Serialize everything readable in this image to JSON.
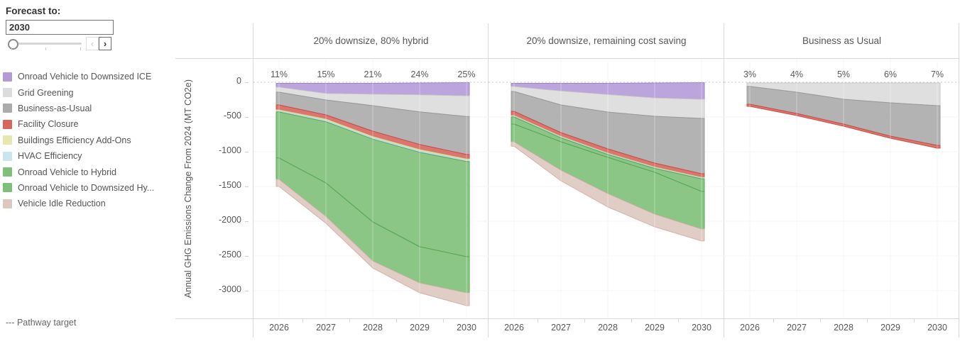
{
  "forecast_filter": {
    "label": "Forecast to:",
    "value": "2030",
    "prev": "‹",
    "next": "›"
  },
  "legend": {
    "items": [
      {
        "label": "Onroad Vehicle to Downsized ICE",
        "color": "#b49bd8"
      },
      {
        "label": "Grid Greening",
        "color": "#dcdcdc"
      },
      {
        "label": "Business-as-Usual",
        "color": "#ababab"
      },
      {
        "label": "Facility Closure",
        "color": "#d7665f"
      },
      {
        "label": "Buildings Efficiency Add-Ons",
        "color": "#e5e7ae"
      },
      {
        "label": "HVAC Efficiency",
        "color": "#cbe5ef"
      },
      {
        "label": "Onroad Vehicle to Hybrid",
        "color": "#7ec07a"
      },
      {
        "label": "Onroad Vehicle to Downsized Hy...",
        "color": "#7ec07a"
      },
      {
        "label": "Vehicle Idle Reduction",
        "color": "#ddc8c0"
      }
    ]
  },
  "pathway_target_note": "--- Pathway target",
  "y_axis": {
    "title": "Annual GHG Emissions Change From 2024 (MT CO2e)",
    "ticks": [
      0,
      -500,
      -1000,
      -1500,
      -2000,
      -2500,
      -3000
    ]
  },
  "x_axis": {
    "years": [
      "2026",
      "2027",
      "2028",
      "2029",
      "2030"
    ]
  },
  "chart_data": {
    "type": "area",
    "stacking": "stacked downward from zero; values are annual GHG emissions change from 2024 in MT CO2e",
    "x": [
      "2026",
      "2027",
      "2028",
      "2029",
      "2030"
    ],
    "ylabel": "Annual GHG Emissions Change From 2024 (MT CO2e)",
    "ylim": [
      -3400,
      0
    ],
    "grid": true,
    "zero_reference_line": "dotted (pathway target)",
    "panels": [
      {
        "title": "20% downsize, 80% hybrid",
        "percent_labels": [
          "11%",
          "15%",
          "21%",
          "24%",
          "25%"
        ],
        "top_offset": [
          -15,
          -15,
          -15,
          -10,
          -5
        ],
        "series": [
          {
            "name": "Onroad Vehicle to Downsized ICE",
            "fill": "#b49bd8",
            "border": "#9d7fc9",
            "values": [
              -55,
              -145,
              -155,
              -170,
              -190
            ]
          },
          {
            "name": "Grid Greening",
            "fill": "#dcdcdc",
            "border": "#c6c6c6",
            "values": [
              -73,
              -95,
              -167,
              -245,
              -298
            ]
          },
          {
            "name": "Business-as-Usual",
            "fill": "#ababab",
            "border": "#979797",
            "values": [
              -184,
              -214,
              -367,
              -470,
              -547
            ]
          },
          {
            "name": "Facility Closure",
            "fill": "#d7665f",
            "border": "#c74b42",
            "values": [
              -71,
              -62,
              -78,
              -74,
              -65
            ]
          },
          {
            "name": "Buildings Efficiency Add-Ons",
            "fill": "#e5e7ae",
            "border": "#d5d88c",
            "values": [
              -15,
              -18,
              -18,
              -19,
              -17
            ]
          },
          {
            "name": "HVAC Efficiency",
            "fill": "#cbe5ef",
            "border": "#aed5e6",
            "values": [
              -15,
              -18,
              -18,
              -19,
              -18
            ]
          },
          {
            "name": "Onroad Vehicle to Hybrid",
            "fill": "#7ec07a",
            "border": "#53a553",
            "values": [
              -662,
              -882,
              -1192,
              -1360,
              -1370
            ]
          },
          {
            "name": "Onroad Vehicle to Downsized Hybrid",
            "fill": "#7ec07a",
            "border": "#53a553",
            "values": [
              -307,
              -481,
              -561,
              -521,
              -520
            ]
          },
          {
            "name": "Vehicle Idle Reduction",
            "fill": "#ddc8c0",
            "border": "#cfb1a6",
            "values": [
              -103,
              -100,
              -102,
              -142,
              -185
            ]
          }
        ]
      },
      {
        "title": "20% downsize, remaining cost saving",
        "percent_labels": [],
        "top_offset": [
          -15,
          -15,
          -15,
          -10,
          -5
        ],
        "series": [
          {
            "name": "Onroad Vehicle to Downsized ICE",
            "fill": "#b49bd8",
            "border": "#9d7fc9",
            "values": [
              -46,
              -111,
              -162,
              -215,
              -240
            ]
          },
          {
            "name": "Grid Greening",
            "fill": "#dcdcdc",
            "border": "#c6c6c6",
            "values": [
              -72,
              -201,
              -252,
              -265,
              -275
            ]
          },
          {
            "name": "Business-as-Usual",
            "fill": "#ababab",
            "border": "#979797",
            "values": [
              -285,
              -397,
              -530,
              -673,
              -796
            ]
          },
          {
            "name": "Facility Closure",
            "fill": "#d7665f",
            "border": "#c74b42",
            "values": [
              -62,
              -56,
              -61,
              -57,
              -54
            ]
          },
          {
            "name": "Buildings Efficiency Add-Ons",
            "fill": "#e5e7ae",
            "border": "#d5d88c",
            "values": [
              -10,
              -10,
              -10,
              -10,
              -10
            ]
          },
          {
            "name": "HVAC Efficiency",
            "fill": "#cbe5ef",
            "border": "#aed5e6",
            "values": [
              -10,
              -10,
              -10,
              -10,
              -10
            ]
          },
          {
            "name": "Onroad Vehicle to Hybrid",
            "fill": "#7ec07a",
            "border": "#53a553",
            "values": [
              -102,
              -57,
              -42,
              -56,
              -181
            ]
          },
          {
            "name": "Onroad Vehicle to Downsized Hybrid",
            "fill": "#7ec07a",
            "border": "#53a553",
            "values": [
              -255,
              -408,
              -520,
              -602,
              -541
            ]
          },
          {
            "name": "Vehicle Idle Reduction",
            "fill": "#ddc8c0",
            "border": "#cfb1a6",
            "values": [
              -63,
              -153,
              -194,
              -183,
              -173
            ]
          }
        ]
      },
      {
        "title": "Business as Usual",
        "percent_labels": [
          "3%",
          "4%",
          "5%",
          "6%",
          "7%"
        ],
        "top_offset": [
          -10,
          -10,
          -10,
          -10,
          -10
        ],
        "series": [
          {
            "name": "Grid Greening",
            "fill": "#dcdcdc",
            "border": "#c6c6c6",
            "values": [
              -50,
              -133,
              -235,
              -286,
              -327
            ]
          },
          {
            "name": "Business-as-Usual",
            "fill": "#ababab",
            "border": "#979797",
            "values": [
              -256,
              -306,
              -357,
              -479,
              -571
            ]
          },
          {
            "name": "Facility Closure",
            "fill": "#d7665f",
            "border": "#c74b42",
            "values": [
              -31,
              -31,
              -31,
              -31,
              -41
            ]
          }
        ]
      }
    ]
  },
  "style_colors": {
    "panel_border": "#d9d9d9",
    "text": "#575757",
    "zero_line": "#c4c4c4",
    "gridline": "#f2f2f2"
  }
}
